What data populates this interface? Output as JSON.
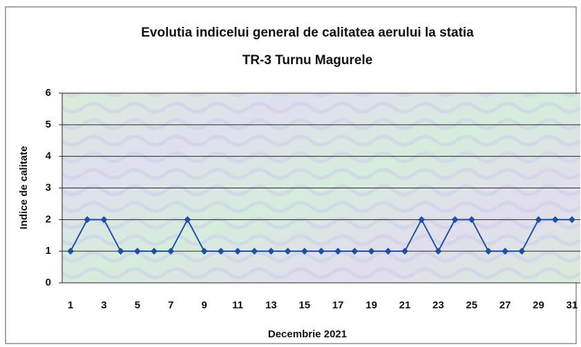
{
  "chart_data": {
    "type": "line",
    "title": [
      "Evolutia indicelui general de calitatea aerului la statia",
      "TR-3 Turnu Magurele"
    ],
    "x_label": "Decembrie 2021",
    "y_label": "Indice de calitate",
    "categories": [
      "1",
      null,
      "3",
      null,
      "5",
      null,
      "7",
      null,
      "9",
      null,
      "11",
      null,
      "13",
      null,
      "15",
      null,
      "17",
      null,
      "19",
      null,
      "21",
      null,
      "23",
      null,
      "25",
      null,
      "27",
      null,
      "29",
      null,
      "31"
    ],
    "series": [
      {
        "name": "Indice de calitate",
        "color": "#1f4f9e",
        "values": [
          1,
          2,
          2,
          1,
          1,
          1,
          1,
          2,
          1,
          1,
          1,
          1,
          1,
          1,
          1,
          1,
          1,
          1,
          1,
          1,
          1,
          2,
          1,
          2,
          2,
          1,
          1,
          1,
          2,
          2,
          2
        ]
      }
    ],
    "ylim": [
      0,
      6
    ],
    "yticks": [
      0,
      1,
      2,
      3,
      4,
      5,
      6
    ],
    "grid": true
  }
}
